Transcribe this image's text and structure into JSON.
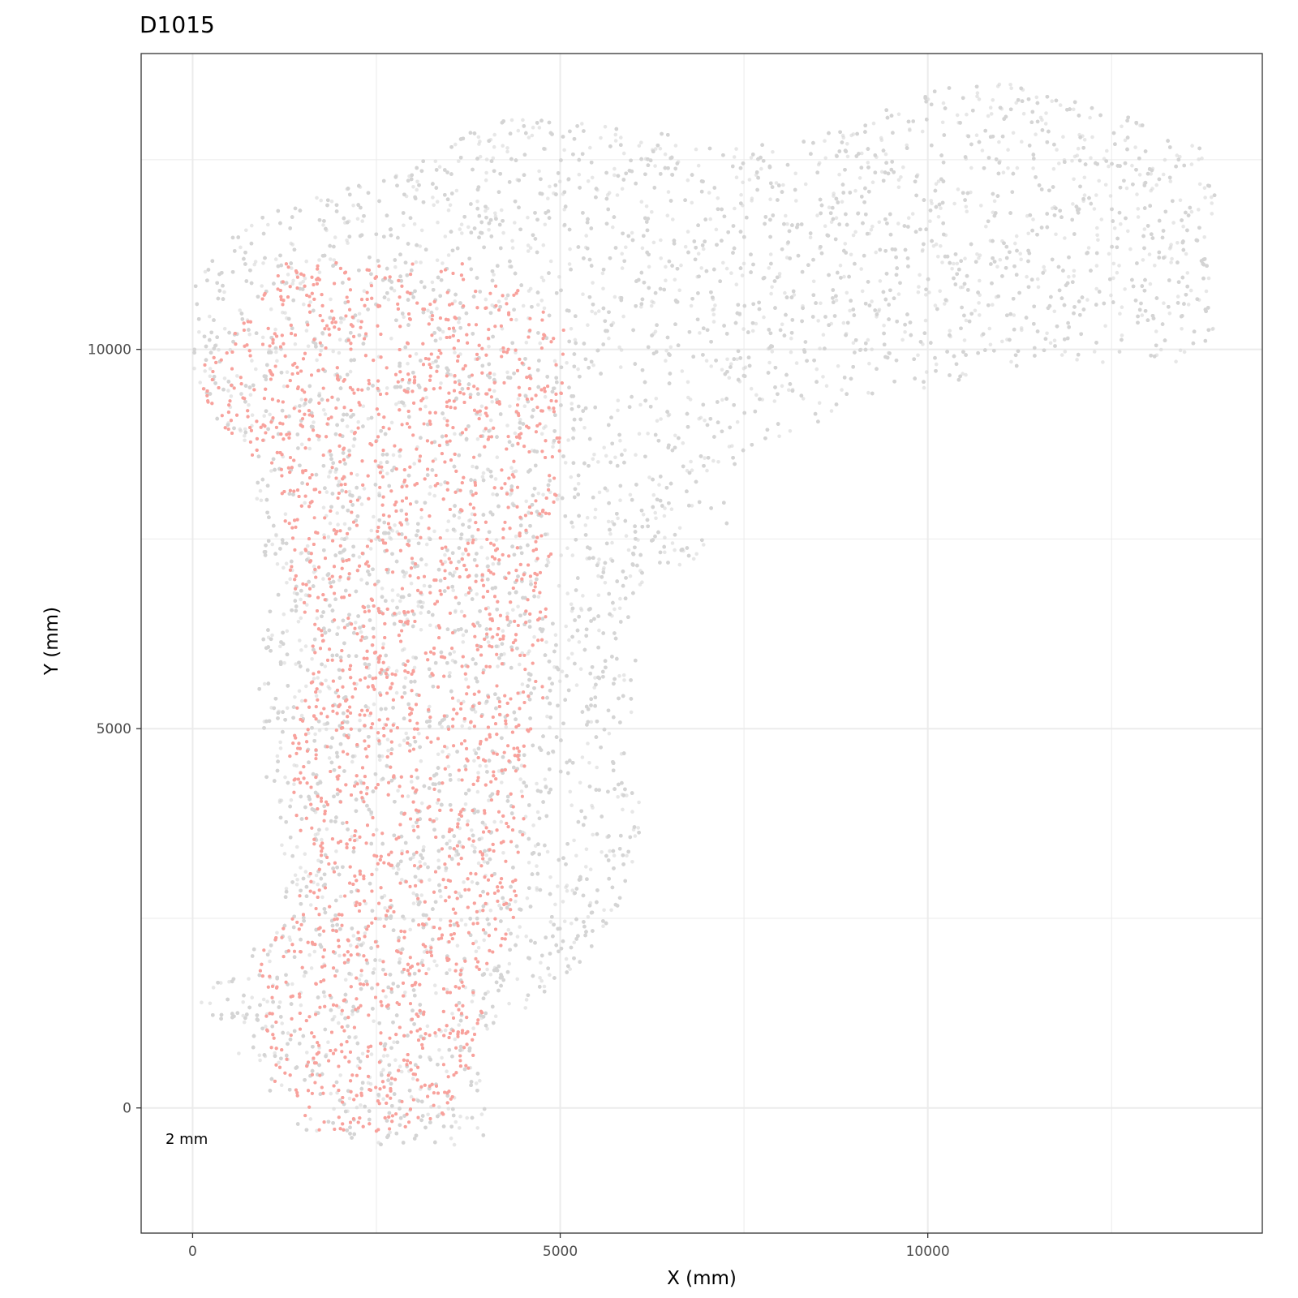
{
  "chart_data": {
    "type": "scatter",
    "title": "D1015",
    "xlabel": "X (mm)",
    "ylabel": "Y (mm)",
    "xlim": [
      -700,
      14550
    ],
    "ylim": [
      -1650,
      13900
    ],
    "x_ticks": [
      0,
      5000,
      10000
    ],
    "y_ticks": [
      0,
      5000,
      10000
    ],
    "x_tick_labels": [
      "0",
      "5000",
      "10000"
    ],
    "y_tick_labels": [
      "0",
      "5000",
      "10000"
    ],
    "grid": true,
    "legend": "none",
    "scalebar_label": "2 mm",
    "colors": {
      "background_cells": "#d3d3d3",
      "highlighted_cells": "#f8a19c",
      "panel_border": "#333333",
      "grid": "#ebebeb"
    },
    "series": [
      {
        "color": "#d3d3d3",
        "description_region_outline": [
          [
            0,
            1500
          ],
          [
            600,
            1800
          ],
          [
            1200,
            2600
          ],
          [
            1300,
            3200
          ],
          [
            1000,
            4100
          ],
          [
            900,
            5600
          ],
          [
            1000,
            7000
          ],
          [
            800,
            8500
          ],
          [
            300,
            9100
          ],
          [
            0,
            9500
          ],
          [
            0,
            10800
          ],
          [
            400,
            11400
          ],
          [
            1300,
            11950
          ],
          [
            2700,
            12300
          ],
          [
            3500,
            12800
          ],
          [
            4500,
            13100
          ],
          [
            6000,
            12900
          ],
          [
            7500,
            12700
          ],
          [
            9000,
            12900
          ],
          [
            10000,
            13500
          ],
          [
            11000,
            13600
          ],
          [
            12000,
            13300
          ],
          [
            13200,
            12900
          ],
          [
            13900,
            12600
          ],
          [
            13900,
            10000
          ],
          [
            13400,
            9800
          ],
          [
            11500,
            9850
          ],
          [
            9200,
            9300
          ],
          [
            7600,
            8700
          ],
          [
            7200,
            7400
          ],
          [
            6300,
            7000
          ],
          [
            6000,
            6800
          ],
          [
            6100,
            3200
          ],
          [
            5600,
            2300
          ],
          [
            5000,
            1600
          ],
          [
            4500,
            1300
          ],
          [
            4200,
            1200
          ],
          [
            4000,
            -400
          ],
          [
            3500,
            -500
          ],
          [
            2500,
            -500
          ],
          [
            1500,
            -300
          ],
          [
            1000,
            200
          ],
          [
            300,
            1100
          ]
        ]
      },
      {
        "color": "#f8a19c",
        "description_region_outline": [
          [
            0,
            9700
          ],
          [
            700,
            10400
          ],
          [
            1300,
            11200
          ],
          [
            2600,
            11100
          ],
          [
            3600,
            11200
          ],
          [
            4600,
            10700
          ],
          [
            5100,
            10300
          ],
          [
            5000,
            8700
          ],
          [
            4900,
            7500
          ],
          [
            4800,
            5500
          ],
          [
            4500,
            4700
          ],
          [
            4600,
            3900
          ],
          [
            4400,
            2600
          ],
          [
            4000,
            1500
          ],
          [
            3800,
            500
          ],
          [
            3400,
            -100
          ],
          [
            2600,
            -400
          ],
          [
            1600,
            -300
          ],
          [
            1000,
            500
          ],
          [
            900,
            2100
          ],
          [
            1400,
            2600
          ],
          [
            1500,
            3200
          ],
          [
            1300,
            4600
          ],
          [
            1500,
            5900
          ],
          [
            1300,
            7200
          ],
          [
            1200,
            8200
          ],
          [
            700,
            8700
          ],
          [
            200,
            9200
          ]
        ]
      }
    ]
  }
}
